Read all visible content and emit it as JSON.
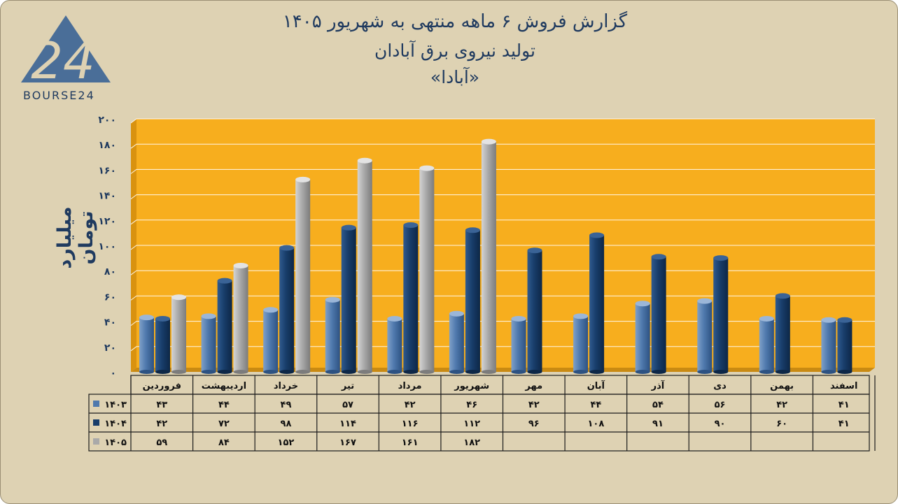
{
  "title": {
    "line1": "گزارش  فروش ۶ ماهه منتهی به شهریور ۱۴۰۵",
    "line2": "تولید نیروی برق آبادان",
    "line3": "«آبادا»"
  },
  "logo": {
    "text": "BOURSE24",
    "mark": "24"
  },
  "colors": {
    "background": "#ded2b3",
    "plot": "#f7ae1e",
    "s1403": "#4f79ad",
    "s1404": "#183d6a",
    "s1405": "#a9a9a9",
    "text": "#1f3a5f"
  },
  "chart_data": {
    "type": "bar",
    "ylabel": "میلیارد تومان",
    "ylim": [
      0,
      200
    ],
    "yticks": [
      "۰",
      "۲۰",
      "۴۰",
      "۶۰",
      "۸۰",
      "۱۰۰",
      "۱۲۰",
      "۱۴۰",
      "۱۶۰",
      "۱۸۰",
      "۲۰۰"
    ],
    "categories": [
      "فروردین",
      "اردیبهشت",
      "خرداد",
      "تیر",
      "مرداد",
      "شهریور",
      "مهر",
      "آبان",
      "آذر",
      "دی",
      "بهمن",
      "اسفند"
    ],
    "series": [
      {
        "name": "۱۴۰۳",
        "values": [
          43,
          44,
          49,
          57,
          42,
          46,
          42,
          44,
          54,
          56,
          42,
          41
        ],
        "labels": [
          "۴۳",
          "۴۴",
          "۴۹",
          "۵۷",
          "۴۲",
          "۴۶",
          "۴۲",
          "۴۴",
          "۵۴",
          "۵۶",
          "۴۲",
          "۴۱"
        ]
      },
      {
        "name": "۱۴۰۴",
        "values": [
          42,
          72,
          98,
          114,
          116,
          112,
          96,
          108,
          91,
          90,
          60,
          41
        ],
        "labels": [
          "۴۲",
          "۷۲",
          "۹۸",
          "۱۱۴",
          "۱۱۶",
          "۱۱۲",
          "۹۶",
          "۱۰۸",
          "۹۱",
          "۹۰",
          "۶۰",
          "۴۱"
        ]
      },
      {
        "name": "۱۴۰۵",
        "values": [
          59,
          84,
          152,
          167,
          161,
          182,
          null,
          null,
          null,
          null,
          null,
          null
        ],
        "labels": [
          "۵۹",
          "۸۴",
          "۱۵۲",
          "۱۶۷",
          "۱۶۱",
          "۱۸۲",
          "",
          "",
          "",
          "",
          "",
          ""
        ]
      }
    ],
    "grid": true,
    "legend": "data-table"
  }
}
